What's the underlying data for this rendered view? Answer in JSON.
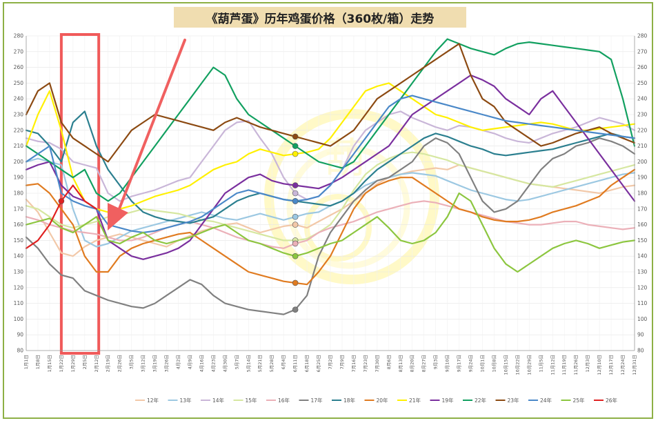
{
  "chart_data": {
    "type": "line",
    "title": "《葫芦蛋》历年鸡蛋价格（360枚/箱）走势",
    "ylim": [
      80,
      280
    ],
    "yticks": [
      80,
      90,
      100,
      110,
      120,
      130,
      140,
      150,
      160,
      170,
      180,
      190,
      200,
      210,
      220,
      230,
      240,
      250,
      260,
      270,
      280
    ],
    "x_tick_labels": [
      "1月1日",
      "1月8日",
      "1月15日",
      "1月22日",
      "1月29日",
      "2月5日",
      "2月12日",
      "2月19日",
      "2月26日",
      "3月5日",
      "3月12日",
      "3月19日",
      "3月26日",
      "4月2日",
      "4月9日",
      "4月16日",
      "4月23日",
      "4月30日",
      "5月7日",
      "5月14日",
      "5月21日",
      "5月28日",
      "6月4日",
      "6月11日",
      "6月18日",
      "6月25日",
      "7月2日",
      "7月9日",
      "7月16日",
      "7月23日",
      "7月30日",
      "8月6日",
      "8月13日",
      "8月20日",
      "8月27日",
      "9月3日",
      "9月10日",
      "9月17日",
      "9月24日",
      "10月1日",
      "10月8日",
      "10月15日",
      "10月22日",
      "10月29日",
      "11月5日",
      "11月12日",
      "11月19日",
      "11月26日",
      "12月3日",
      "12月10日",
      "12月17日",
      "12月24日",
      "12月31日"
    ],
    "highlight_range": [
      "1月22日",
      "2月14日"
    ],
    "series": [
      {
        "name": "12年",
        "color": "#f2c8a8",
        "values": [
          176,
          168,
          155,
          142,
          140,
          146,
          150,
          152,
          154,
          152,
          150,
          148,
          146,
          150,
          153,
          156,
          158,
          160,
          161,
          158,
          155,
          157,
          159,
          160,
          158,
          162,
          166,
          170,
          175,
          180,
          186,
          190,
          192,
          194,
          195,
          196,
          195,
          198,
          196,
          194,
          192,
          190,
          188,
          186,
          185,
          184,
          183,
          182,
          181,
          180,
          182,
          184,
          185
        ]
      },
      {
        "name": "13年",
        "color": "#9cc8e2",
        "values": [
          200,
          202,
          200,
          198,
          170,
          150,
          146,
          148,
          152,
          156,
          158,
          160,
          162,
          164,
          166,
          168,
          166,
          164,
          163,
          165,
          167,
          165,
          163,
          165,
          167,
          168,
          172,
          175,
          180,
          185,
          188,
          190,
          192,
          193,
          192,
          191,
          188,
          185,
          182,
          180,
          178,
          176,
          175,
          176,
          178,
          180,
          182,
          184,
          186,
          188,
          190,
          192,
          193
        ]
      },
      {
        "name": "14年",
        "color": "#c9b6d8",
        "values": [
          215,
          213,
          212,
          208,
          200,
          198,
          196,
          180,
          175,
          178,
          180,
          182,
          185,
          188,
          190,
          200,
          210,
          220,
          225,
          226,
          215,
          205,
          190,
          180,
          176,
          178,
          185,
          195,
          210,
          220,
          225,
          230,
          232,
          228,
          225,
          222,
          220,
          223,
          222,
          220,
          218,
          215,
          213,
          212,
          215,
          218,
          220,
          222,
          225,
          228,
          226,
          224,
          220
        ]
      },
      {
        "name": "15年",
        "color": "#d6e7a0",
        "values": [
          172,
          170,
          165,
          160,
          158,
          160,
          162,
          165,
          166,
          168,
          170,
          169,
          168,
          167,
          165,
          163,
          162,
          160,
          158,
          156,
          154,
          152,
          150,
          150,
          151,
          155,
          160,
          170,
          182,
          192,
          198,
          202,
          205,
          206,
          205,
          203,
          201,
          198,
          196,
          194,
          192,
          190,
          188,
          186,
          185,
          184,
          186,
          188,
          190,
          192,
          194,
          196,
          198
        ]
      },
      {
        "name": "16年",
        "color": "#ebb0b8",
        "values": [
          165,
          163,
          160,
          158,
          156,
          155,
          154,
          152,
          150,
          150,
          152,
          155,
          158,
          160,
          162,
          160,
          158,
          155,
          152,
          150,
          148,
          146,
          145,
          148,
          150,
          155,
          158,
          160,
          162,
          165,
          168,
          170,
          172,
          174,
          175,
          174,
          172,
          170,
          168,
          166,
          164,
          162,
          161,
          160,
          160,
          161,
          162,
          162,
          160,
          159,
          158,
          157,
          158
        ]
      },
      {
        "name": "17年",
        "color": "#808080",
        "values": [
          152,
          145,
          135,
          128,
          126,
          118,
          115,
          112,
          110,
          108,
          107,
          110,
          115,
          120,
          125,
          122,
          115,
          110,
          108,
          106,
          105,
          104,
          103,
          106,
          115,
          140,
          155,
          165,
          175,
          182,
          188,
          190,
          195,
          200,
          210,
          215,
          212,
          205,
          190,
          175,
          168,
          170,
          175,
          185,
          195,
          202,
          205,
          210,
          212,
          215,
          213,
          210,
          205
        ]
      },
      {
        "name": "18年",
        "color": "#2b7f8f",
        "values": [
          220,
          218,
          210,
          200,
          225,
          232,
          210,
          195,
          185,
          175,
          168,
          165,
          163,
          162,
          161,
          163,
          165,
          170,
          175,
          178,
          180,
          178,
          176,
          175,
          174,
          173,
          172,
          175,
          180,
          188,
          195,
          200,
          205,
          210,
          215,
          218,
          216,
          213,
          210,
          208,
          205,
          204,
          205,
          206,
          207,
          208,
          210,
          212,
          214,
          216,
          218,
          216,
          215
        ]
      },
      {
        "name": "20年",
        "color": "#e07b20",
        "values": [
          185,
          186,
          180,
          170,
          160,
          140,
          130,
          130,
          140,
          145,
          148,
          150,
          152,
          154,
          155,
          150,
          145,
          140,
          135,
          130,
          128,
          126,
          124,
          123,
          122,
          130,
          140,
          155,
          170,
          180,
          185,
          188,
          190,
          190,
          185,
          180,
          175,
          170,
          168,
          165,
          163,
          162,
          162,
          163,
          165,
          168,
          170,
          172,
          175,
          178,
          185,
          190,
          195
        ]
      },
      {
        "name": "21年",
        "color": "#fff000",
        "values": [
          210,
          230,
          245,
          220,
          190,
          175,
          170,
          168,
          170,
          172,
          175,
          178,
          180,
          182,
          185,
          190,
          195,
          198,
          200,
          205,
          208,
          206,
          204,
          205,
          206,
          208,
          215,
          225,
          235,
          245,
          248,
          250,
          245,
          240,
          235,
          230,
          228,
          225,
          222,
          220,
          221,
          222,
          223,
          224,
          225,
          224,
          222,
          220,
          220,
          221,
          222,
          223,
          224
        ]
      },
      {
        "name": "19年",
        "color": "#7a2f9e",
        "values": [
          195,
          198,
          200,
          185,
          178,
          175,
          170,
          150,
          145,
          140,
          138,
          140,
          142,
          145,
          150,
          160,
          170,
          180,
          185,
          190,
          192,
          188,
          186,
          185,
          184,
          183,
          186,
          190,
          195,
          200,
          205,
          210,
          220,
          230,
          235,
          240,
          245,
          250,
          255,
          252,
          248,
          240,
          235,
          230,
          240,
          245,
          235,
          225,
          215,
          205,
          195,
          185,
          175
        ]
      },
      {
        "name": "22年",
        "color": "#12a060",
        "values": [
          210,
          205,
          200,
          195,
          190,
          195,
          180,
          175,
          180,
          190,
          200,
          210,
          220,
          230,
          240,
          250,
          260,
          255,
          240,
          230,
          225,
          220,
          215,
          210,
          205,
          200,
          198,
          196,
          200,
          210,
          220,
          230,
          240,
          250,
          260,
          270,
          278,
          275,
          272,
          270,
          268,
          272,
          275,
          276,
          275,
          274,
          273,
          272,
          271,
          270,
          265,
          240,
          210
        ]
      },
      {
        "name": "23年",
        "color": "#8c4a12",
        "values": [
          230,
          245,
          250,
          225,
          215,
          210,
          205,
          200,
          210,
          220,
          225,
          230,
          228,
          226,
          224,
          222,
          220,
          225,
          228,
          225,
          222,
          220,
          218,
          216,
          214,
          212,
          210,
          215,
          220,
          230,
          240,
          245,
          250,
          255,
          260,
          265,
          270,
          275,
          255,
          240,
          235,
          225,
          220,
          215,
          210,
          212,
          215,
          218,
          220,
          222,
          218,
          215,
          212
        ]
      },
      {
        "name": "24年",
        "color": "#4a88c8",
        "values": [
          200,
          205,
          210,
          180,
          175,
          172,
          170,
          160,
          158,
          156,
          155,
          156,
          158,
          160,
          162,
          165,
          170,
          175,
          180,
          182,
          180,
          178,
          176,
          175,
          176,
          178,
          185,
          195,
          205,
          215,
          225,
          235,
          240,
          242,
          240,
          238,
          236,
          234,
          232,
          230,
          228,
          226,
          225,
          224,
          223,
          222,
          221,
          220,
          219,
          218,
          217,
          216,
          215
        ]
      },
      {
        "name": "25年",
        "color": "#8cc63f",
        "values": [
          160,
          162,
          164,
          158,
          155,
          160,
          165,
          150,
          148,
          152,
          155,
          150,
          148,
          150,
          152,
          155,
          158,
          160,
          155,
          150,
          148,
          145,
          142,
          140,
          142,
          145,
          148,
          150,
          155,
          160,
          165,
          158,
          150,
          148,
          150,
          155,
          165,
          180,
          175,
          160,
          145,
          135,
          130,
          135,
          140,
          145,
          148,
          150,
          148,
          145,
          147,
          149,
          150
        ]
      },
      {
        "name": "26年",
        "color": "#e02020",
        "values": [
          145,
          150,
          160,
          175,
          185,
          175,
          170
        ]
      }
    ]
  },
  "watermark_text": "葫"
}
